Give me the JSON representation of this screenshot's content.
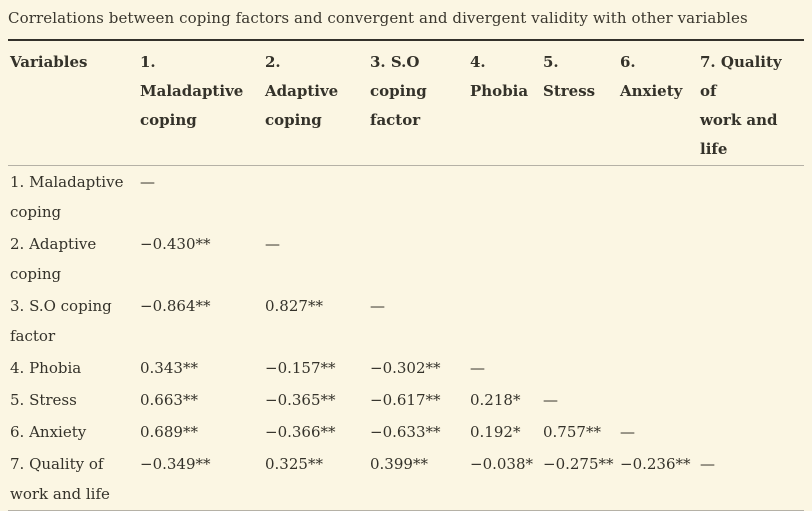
{
  "caption": "Correlations between coping factors and convergent and divergent validity with other variables",
  "colors": {
    "background": "#fbf6e3",
    "text": "#34322a",
    "border_dark": "#33312a",
    "border_light": "#b5b1a6"
  },
  "table": {
    "columns": [
      "Variables",
      "1. Maladaptive\ncoping",
      "2. Adaptive\ncoping",
      "3. S.O\ncoping\nfactor",
      "4.\nPhobia",
      "5. Stress",
      "6.\nAnxiety",
      "7. Quality of\nwork and life"
    ],
    "rows": [
      {
        "label": "1. Maladaptive\ncoping",
        "values": [
          "—",
          "",
          "",
          "",
          "",
          "",
          ""
        ]
      },
      {
        "label": "2. Adaptive\ncoping",
        "values": [
          "−0.430**",
          "—",
          "",
          "",
          "",
          "",
          ""
        ]
      },
      {
        "label": "3. S.O coping\nfactor",
        "values": [
          "−0.864**",
          "0.827**",
          "—",
          "",
          "",
          "",
          ""
        ]
      },
      {
        "label": "4. Phobia",
        "values": [
          "0.343**",
          "−0.157**",
          "−0.302**",
          "—",
          "",
          "",
          ""
        ]
      },
      {
        "label": "5. Stress",
        "values": [
          "0.663**",
          "−0.365**",
          "−0.617**",
          "0.218*",
          "—",
          "",
          ""
        ]
      },
      {
        "label": "6. Anxiety",
        "values": [
          "0.689**",
          "−0.366**",
          "−0.633**",
          "0.192*",
          "0.757**",
          "—",
          ""
        ]
      },
      {
        "label": "7. Quality of\nwork and life",
        "values": [
          "−0.349**",
          "0.325**",
          "0.399**",
          "−0.038*",
          "−0.275**",
          "−0.236**",
          "—"
        ]
      }
    ]
  }
}
